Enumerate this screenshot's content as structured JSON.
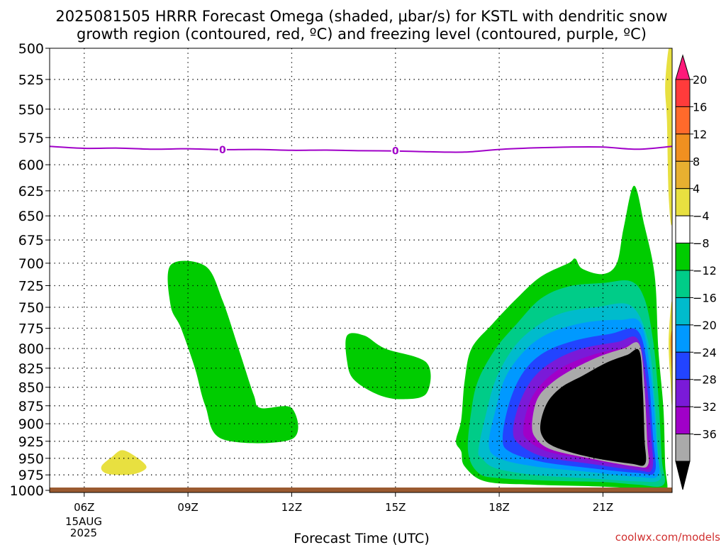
{
  "chart_data": {
    "type": "heatmap",
    "title_line1": "2025081505 HRRR Forecast Omega (shaded, μbar/s) for KSTL with dendritic snow",
    "title_line2": "growth region (contoured, red, ºC) and freezing level (contoured, purple, ºC)",
    "xlabel": "Forecast Time (UTC)",
    "credit": "coolwx.com/models",
    "x_hours": [
      6,
      9,
      12,
      15,
      18,
      21
    ],
    "x_tick_labels": [
      "06Z",
      "09Z",
      "12Z",
      "15Z",
      "18Z",
      "21Z"
    ],
    "x_date_line1": "15AUG",
    "x_date_line2": "2025",
    "xlim": [
      5,
      23
    ],
    "y_ticks": [
      500,
      525,
      550,
      575,
      600,
      625,
      650,
      675,
      700,
      725,
      750,
      775,
      800,
      825,
      850,
      875,
      900,
      925,
      950,
      975,
      1000
    ],
    "ylim": [
      500,
      1000
    ],
    "y_log": true,
    "grid": true,
    "colorbar": {
      "labels": [
        "20",
        "16",
        "12",
        "8",
        "4",
        "−4",
        "−8",
        "−12",
        "−16",
        "−20",
        "−24",
        "−28",
        "−32",
        "−36"
      ],
      "colors": [
        "#ff1a7a",
        "#ff3b3b",
        "#ff6a2b",
        "#f09020",
        "#e8b030",
        "#e8e040",
        "#ffffff",
        "#00cc00",
        "#00cc88",
        "#00bbcc",
        "#0099ff",
        "#2244ff",
        "#7a1ad8",
        "#a000c8",
        "#aaaaaa",
        "#000000"
      ]
    },
    "freezing_level": {
      "label": "0",
      "label_hours": [
        10,
        15
      ],
      "color": "#a000c8",
      "points": [
        [
          5,
          583
        ],
        [
          6,
          584.8
        ],
        [
          7,
          584.6
        ],
        [
          8,
          585.6
        ],
        [
          9,
          585.2
        ],
        [
          10,
          586
        ],
        [
          11,
          585.8
        ],
        [
          12,
          586.6
        ],
        [
          13,
          586.4
        ],
        [
          14,
          587
        ],
        [
          15,
          587.2
        ],
        [
          16,
          588
        ],
        [
          17,
          588.2
        ],
        [
          18,
          585.8
        ],
        [
          19,
          584.4
        ],
        [
          20,
          583.6
        ],
        [
          21,
          583.6
        ],
        [
          22,
          585.6
        ],
        [
          23,
          583
        ]
      ]
    },
    "shaded_regions": [
      {
        "value": "-4 to -8",
        "color": "#00cc00",
        "points": [
          [
            8.5,
            702
          ],
          [
            9.5,
            703
          ],
          [
            10,
            742
          ],
          [
            10.5,
            805
          ],
          [
            10.9,
            860
          ],
          [
            11.1,
            878
          ],
          [
            12,
            878
          ],
          [
            12,
            922
          ],
          [
            10,
            922
          ],
          [
            9.5,
            875
          ],
          [
            9.2,
            825
          ],
          [
            8.8,
            775
          ],
          [
            8.5,
            748
          ]
        ]
      },
      {
        "value": "-4 to -8",
        "color": "#00cc00",
        "points": [
          [
            13.6,
            784
          ],
          [
            14.1,
            784
          ],
          [
            14.7,
            800
          ],
          [
            15.9,
            818
          ],
          [
            15.9,
            858
          ],
          [
            15.2,
            866
          ],
          [
            14.5,
            860
          ],
          [
            13.8,
            840
          ],
          [
            13.6,
            816
          ]
        ]
      },
      {
        "value": "4 to 8",
        "color": "#e8e040",
        "points": [
          [
            6.5,
            962
          ],
          [
            6.8,
            948
          ],
          [
            7.1,
            938
          ],
          [
            7.5,
            948
          ],
          [
            7.8,
            963
          ],
          [
            7.5,
            973
          ],
          [
            7,
            975
          ],
          [
            6.6,
            972
          ]
        ]
      },
      {
        "value": "4 to 8",
        "color": "#e8e040",
        "points": [
          [
            22.9,
            500
          ],
          [
            23,
            500
          ],
          [
            23,
            650
          ],
          [
            22.9,
            630
          ],
          [
            22.85,
            560
          ],
          [
            22.8,
            530
          ]
        ]
      },
      {
        "value": "-4 to -8",
        "color": "#00cc00",
        "points": [
          [
            16.75,
            925
          ],
          [
            16.9,
            895
          ],
          [
            17,
            842
          ],
          [
            17.2,
            800
          ],
          [
            17.8,
            770
          ],
          [
            18.5,
            740
          ],
          [
            19.2,
            715
          ],
          [
            20,
            700
          ],
          [
            20.2,
            695
          ],
          [
            20.4,
            706
          ],
          [
            21,
            712
          ],
          [
            21.4,
            700
          ],
          [
            21.6,
            662
          ],
          [
            21.9,
            620
          ],
          [
            22.2,
            660
          ],
          [
            22.5,
            715
          ],
          [
            22.6,
            800
          ],
          [
            22.75,
            880
          ],
          [
            22.8,
            960
          ],
          [
            22.85,
            998
          ],
          [
            22.5,
            998
          ],
          [
            21,
            993
          ],
          [
            19,
            990
          ],
          [
            17.6,
            985
          ],
          [
            17,
            962
          ],
          [
            16.9,
            940
          ]
        ]
      },
      {
        "value": "-8 to -12",
        "color": "#00cc88",
        "points": [
          [
            17.1,
            940
          ],
          [
            17.2,
            880
          ],
          [
            17.4,
            840
          ],
          [
            17.9,
            800
          ],
          [
            18.5,
            770
          ],
          [
            19.2,
            740
          ],
          [
            20,
            726
          ],
          [
            21,
            722
          ],
          [
            21.8,
            720
          ],
          [
            22.2,
            740
          ],
          [
            22.45,
            790
          ],
          [
            22.6,
            860
          ],
          [
            22.7,
            950
          ],
          [
            22.75,
            990
          ],
          [
            22,
            990
          ],
          [
            21,
            986
          ],
          [
            19.5,
            984
          ],
          [
            18,
            980
          ],
          [
            17.4,
            972
          ]
        ]
      },
      {
        "value": "-12 to -16",
        "color": "#00bbcc",
        "points": [
          [
            17.4,
            938
          ],
          [
            17.6,
            890
          ],
          [
            17.9,
            840
          ],
          [
            18.4,
            800
          ],
          [
            19,
            775
          ],
          [
            19.8,
            757
          ],
          [
            20.8,
            750
          ],
          [
            21.8,
            748
          ],
          [
            22.3,
            790
          ],
          [
            22.5,
            870
          ],
          [
            22.6,
            950
          ],
          [
            22.65,
            982
          ],
          [
            22,
            985
          ],
          [
            20.5,
            980
          ],
          [
            19,
            975
          ],
          [
            17.9,
            965
          ],
          [
            17.5,
            950
          ]
        ]
      },
      {
        "value": "-16 to -20",
        "color": "#0099ff",
        "points": [
          [
            17.7,
            930
          ],
          [
            17.9,
            880
          ],
          [
            18.2,
            835
          ],
          [
            18.8,
            800
          ],
          [
            19.5,
            780
          ],
          [
            20.5,
            768
          ],
          [
            21.5,
            765
          ],
          [
            22.1,
            770
          ],
          [
            22.4,
            840
          ],
          [
            22.55,
            930
          ],
          [
            22.6,
            975
          ],
          [
            22,
            978
          ],
          [
            20.5,
            970
          ],
          [
            19,
            962
          ],
          [
            18,
            950
          ]
        ]
      },
      {
        "value": "-20 to -24",
        "color": "#2244ff",
        "points": [
          [
            18.1,
            920
          ],
          [
            18.3,
            870
          ],
          [
            18.7,
            830
          ],
          [
            19.3,
            805
          ],
          [
            20.2,
            790
          ],
          [
            21.2,
            782
          ],
          [
            22,
            778
          ],
          [
            22.3,
            830
          ],
          [
            22.45,
            920
          ],
          [
            22.5,
            970
          ],
          [
            22,
            972
          ],
          [
            20.5,
            964
          ],
          [
            19.2,
            955
          ],
          [
            18.3,
            940
          ]
        ]
      },
      {
        "value": "-24 to -28",
        "color": "#7a1ad8",
        "points": [
          [
            18.4,
            910
          ],
          [
            18.6,
            870
          ],
          [
            19,
            837
          ],
          [
            19.6,
            815
          ],
          [
            20.4,
            800
          ],
          [
            21.4,
            792
          ],
          [
            22,
            788
          ],
          [
            22.25,
            840
          ],
          [
            22.4,
            920
          ],
          [
            22.42,
            966
          ],
          [
            22,
            968
          ],
          [
            20.6,
            958
          ],
          [
            19.3,
            948
          ],
          [
            18.6,
            930
          ]
        ]
      },
      {
        "value": "-28 to -32",
        "color": "#a000c8",
        "points": [
          [
            18.7,
            905
          ],
          [
            18.9,
            868
          ],
          [
            19.3,
            842
          ],
          [
            19.9,
            822
          ],
          [
            20.7,
            808
          ],
          [
            21.5,
            800
          ],
          [
            22,
            797
          ],
          [
            22.2,
            850
          ],
          [
            22.32,
            925
          ],
          [
            22.35,
            962
          ],
          [
            22,
            964
          ],
          [
            20.6,
            952
          ],
          [
            19.4,
            940
          ],
          [
            18.8,
            922
          ]
        ]
      },
      {
        "value": "-32 to -36",
        "color": "#aaaaaa",
        "points": [
          [
            18.95,
            900
          ],
          [
            19.1,
            866
          ],
          [
            19.5,
            845
          ],
          [
            20.1,
            827
          ],
          [
            20.9,
            810
          ],
          [
            21.6,
            800
          ],
          [
            22.05,
            795
          ],
          [
            22.2,
            850
          ],
          [
            22.28,
            925
          ],
          [
            22.3,
            960
          ],
          [
            21.9,
            962
          ],
          [
            20.6,
            950
          ],
          [
            19.5,
            937
          ],
          [
            19.05,
            920
          ]
        ]
      },
      {
        "value": "< -36",
        "color": "#000000",
        "points": [
          [
            19.2,
            898
          ],
          [
            19.4,
            870
          ],
          [
            19.8,
            850
          ],
          [
            20.4,
            835
          ],
          [
            21.1,
            818
          ],
          [
            21.7,
            808
          ],
          [
            22.05,
            803
          ],
          [
            22.15,
            850
          ],
          [
            22.2,
            920
          ],
          [
            22.22,
            958
          ],
          [
            21.8,
            958
          ],
          [
            20.6,
            948
          ],
          [
            19.6,
            933
          ],
          [
            19.25,
            918
          ]
        ]
      },
      {
        "value": "4 to 8",
        "color": "#e8e040",
        "points": [
          [
            22.9,
            790
          ],
          [
            23,
            745
          ],
          [
            23,
            870
          ],
          [
            22.95,
            840
          ]
        ]
      },
      {
        "value": "12 to 16",
        "color": "#f09020",
        "points": [
          [
            22.95,
            790
          ],
          [
            23,
            780
          ],
          [
            23,
            830
          ],
          [
            22.97,
            815
          ]
        ]
      }
    ]
  }
}
